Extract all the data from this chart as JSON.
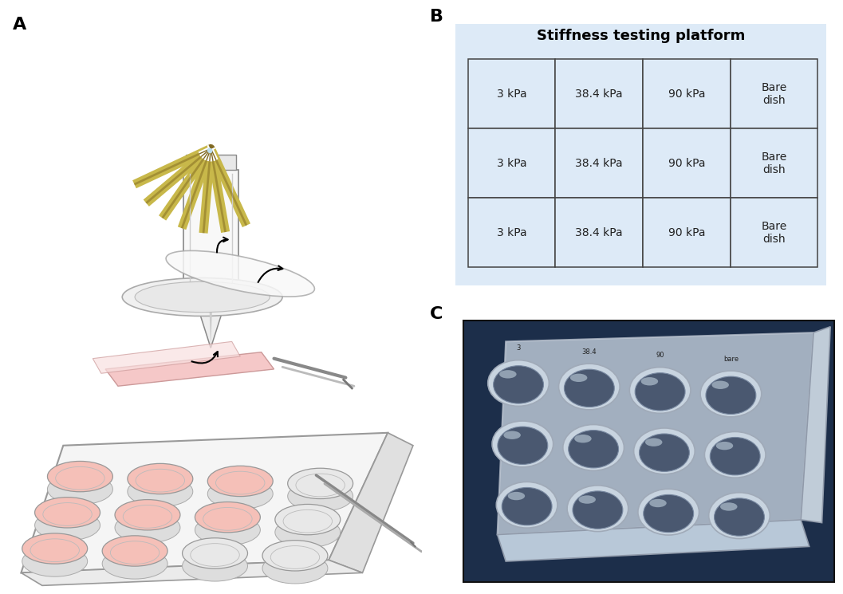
{
  "label_A": "A",
  "label_B": "B",
  "label_C": "C",
  "table_title": "Stiffness testing platform",
  "table_bg_color": "#ddeaf7",
  "table_border_color": "#444444",
  "table_data": [
    [
      "3 kPa",
      "38.4 kPa",
      "90 kPa",
      "Bare\ndish"
    ],
    [
      "3 kPa",
      "38.4 kPa",
      "90 kPa",
      "Bare\ndish"
    ],
    [
      "3 kPa",
      "38.4 kPa",
      "90 kPa",
      "Bare\ndish"
    ]
  ],
  "bg_color": "#ffffff",
  "label_fontsize": 16,
  "table_title_fontsize": 13,
  "table_cell_fontsize": 10,
  "tip_color": "#c8b84a",
  "tip_dark": "#806820",
  "tip_angles": [
    -65,
    -50,
    -35,
    -20,
    -5,
    10,
    25
  ]
}
